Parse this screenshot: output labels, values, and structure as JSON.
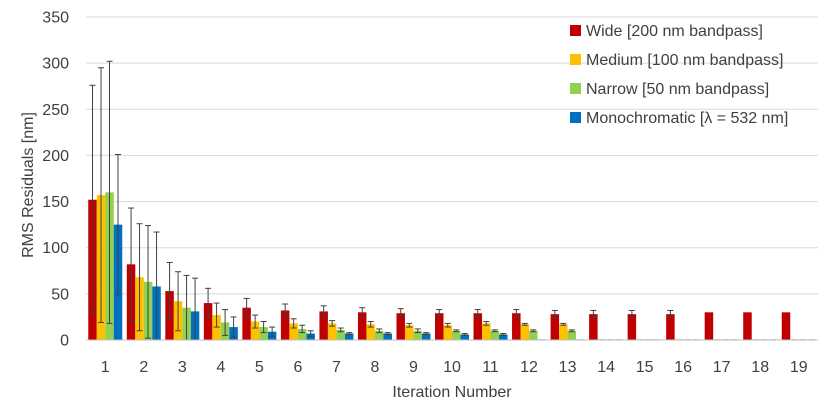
{
  "chart_data": {
    "type": "bar",
    "title": "",
    "xlabel": "Iteration Number",
    "ylabel": "RMS Residuals [nm]",
    "ylim": [
      0,
      350
    ],
    "yticks": [
      0,
      50,
      100,
      150,
      200,
      250,
      300,
      350
    ],
    "categories": [
      "1",
      "2",
      "3",
      "4",
      "5",
      "6",
      "7",
      "8",
      "9",
      "10",
      "11",
      "12",
      "13",
      "14",
      "15",
      "16",
      "17",
      "18",
      "19"
    ],
    "grid": true,
    "legend_position": "top-right",
    "series": [
      {
        "name": "Wide [200 nm bandpass]",
        "color": "#C00000",
        "values": [
          152,
          82,
          53,
          40,
          35,
          32,
          31,
          30,
          29,
          29,
          29,
          29,
          28,
          28,
          28,
          28,
          30,
          30,
          30
        ],
        "errors": [
          124,
          61,
          31,
          16,
          10,
          7,
          6,
          5,
          5,
          4,
          4,
          4,
          4,
          4,
          4,
          4,
          0,
          0,
          0
        ]
      },
      {
        "name": "Medium [100 nm bandpass]",
        "color": "#FFC000",
        "values": [
          157,
          68,
          42,
          27,
          20,
          18,
          18,
          17,
          16,
          16,
          18,
          17,
          17,
          0,
          0,
          0,
          0,
          0,
          0
        ],
        "errors": [
          138,
          58,
          32,
          13,
          7,
          5,
          3,
          3,
          2,
          2,
          2,
          1,
          1,
          0,
          0,
          0,
          0,
          0,
          0
        ]
      },
      {
        "name": "Narrow [50 nm bandpass]",
        "color": "#92D050",
        "values": [
          160,
          63,
          35,
          19,
          14,
          12,
          11,
          10,
          10,
          10,
          10,
          10,
          10,
          0,
          0,
          0,
          0,
          0,
          0
        ],
        "errors": [
          142,
          61,
          35,
          14,
          6,
          4,
          2,
          2,
          2,
          1,
          1,
          1,
          1,
          0,
          0,
          0,
          0,
          0,
          0
        ]
      },
      {
        "name": "Monochromatic [λ = 532 nm]",
        "color": "#0070C0",
        "values": [
          125,
          58,
          31,
          14,
          9,
          7,
          7,
          7,
          7,
          6,
          6,
          0,
          0,
          0,
          0,
          0,
          0,
          0,
          0
        ],
        "errors": [
          76,
          59,
          36,
          11,
          5,
          3,
          1,
          1,
          1,
          1,
          1,
          0,
          0,
          0,
          0,
          0,
          0,
          0,
          0
        ]
      }
    ]
  }
}
